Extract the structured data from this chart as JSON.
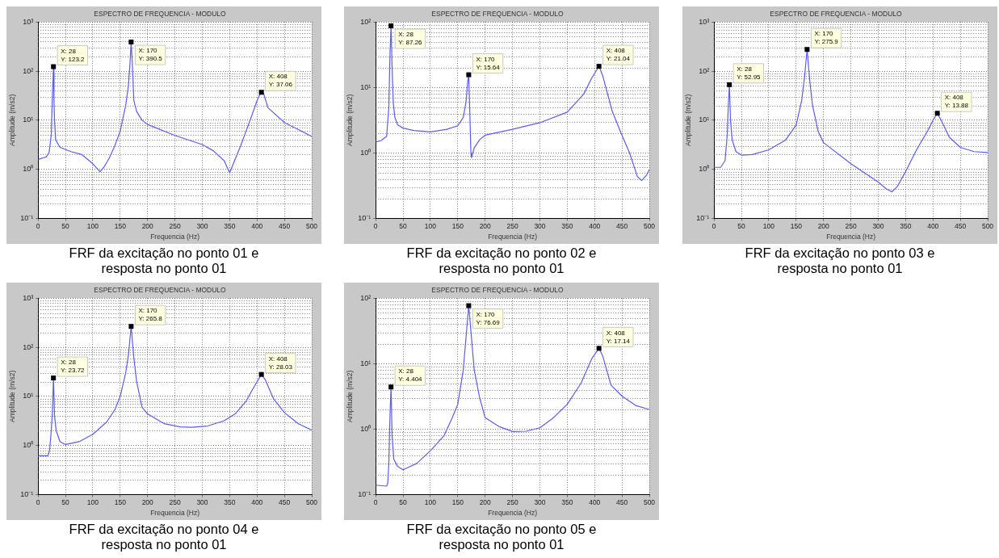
{
  "chart_data": [
    {
      "type": "line",
      "title": "ESPECTRO DE FREQUENCIA - MODULO",
      "xlabel": "Frequencia (Hz)",
      "ylabel": "Amplitude (m/s2)",
      "color": "#5a5aff",
      "log": "y",
      "grid": true,
      "legend": false,
      "marker": "none",
      "line_style": "solid",
      "xlim": [
        0,
        500
      ],
      "xticks": [
        0,
        50,
        100,
        150,
        200,
        250,
        300,
        350,
        400,
        450,
        500
      ],
      "ylim": [
        0.1,
        1000
      ],
      "yticks": [
        {
          "value": 0.1,
          "label": "10⁻¹"
        },
        {
          "value": 1,
          "label": "10⁰"
        },
        {
          "value": 10,
          "label": "10¹"
        },
        {
          "value": 100,
          "label": "10²"
        },
        {
          "value": 1000,
          "label": "10³"
        }
      ],
      "x": [
        0,
        15,
        20,
        24,
        26,
        28,
        29,
        30,
        32,
        40,
        60,
        80,
        100,
        113,
        120,
        130,
        140,
        150,
        160,
        165,
        168,
        170,
        172,
        175,
        180,
        190,
        200,
        250,
        300,
        320,
        340,
        350,
        360,
        370,
        380,
        390,
        400,
        405,
        408,
        412,
        420,
        450,
        475,
        500
      ],
      "values": [
        1.6,
        1.8,
        2.2,
        5,
        30,
        123.2,
        25,
        10,
        4,
        2.8,
        2.3,
        2,
        1.3,
        0.9,
        1.1,
        1.7,
        3,
        6,
        20,
        50,
        150,
        390.5,
        150,
        25,
        15,
        10,
        8.2,
        4.9,
        3.2,
        2.4,
        1.5,
        0.85,
        1.6,
        3,
        6,
        12,
        25,
        33,
        37.06,
        35,
        18,
        9,
        6.5,
        4.7
      ],
      "annotations": [
        {
          "text": "X: 28\nY: 123.2",
          "x": 28,
          "y": 123.2
        },
        {
          "text": "X: 170\nY: 390.5",
          "x": 170,
          "y": 390.5
        },
        {
          "text": "X: 408\nY: 37.06",
          "x": 408,
          "y": 37.06
        },
        "FRF da excitação no ponto 01 e resposta no ponto 01"
      ]
    },
    {
      "type": "line",
      "title": "ESPECTRO DE FREQUENCIA - MODULO",
      "xlabel": "Frequencia (Hz)",
      "ylabel": "Amplitude (m/s2)",
      "color": "#5a5aff",
      "log": "y",
      "grid": true,
      "legend": false,
      "marker": "none",
      "line_style": "solid",
      "xlim": [
        0,
        500
      ],
      "xticks": [
        0,
        50,
        100,
        150,
        200,
        250,
        300,
        350,
        400,
        450,
        500
      ],
      "ylim": [
        0.1,
        100
      ],
      "yticks": [
        {
          "value": 0.1,
          "label": "10⁻¹"
        },
        {
          "value": 1,
          "label": "10⁰"
        },
        {
          "value": 10,
          "label": "10¹"
        },
        {
          "value": 100,
          "label": "10²"
        }
      ],
      "x": [
        0,
        10,
        20,
        24,
        26,
        28,
        30,
        32,
        35,
        40,
        50,
        70,
        100,
        130,
        150,
        160,
        165,
        168,
        170,
        172,
        174,
        175,
        180,
        190,
        200,
        250,
        300,
        350,
        380,
        395,
        408,
        415,
        432,
        448,
        464,
        478,
        486,
        495,
        500
      ],
      "values": [
        1.47,
        1.55,
        1.8,
        5,
        30,
        87.26,
        20,
        6,
        3.5,
        2.7,
        2.4,
        2.2,
        2.1,
        2.3,
        2.6,
        3.5,
        6,
        12,
        15.64,
        4,
        1,
        0.85,
        1.2,
        1.6,
        1.87,
        2.3,
        2.9,
        4.2,
        7.9,
        14,
        21.04,
        15,
        4.4,
        2.05,
        1,
        0.44,
        0.38,
        0.46,
        0.56
      ],
      "annotations": [
        {
          "text": "X: 28\nY: 87.26",
          "x": 28,
          "y": 87.26
        },
        {
          "text": "X: 170\nY: 15.64",
          "x": 170,
          "y": 15.64
        },
        {
          "text": "X: 408\nY: 21.04",
          "x": 408,
          "y": 21.04
        },
        "FRF da excitação no ponto 02 e resposta no ponto 01"
      ]
    },
    {
      "type": "line",
      "title": "ESPECTRO DE FREQUENCIA - MODULO",
      "xlabel": "Frequencia (Hz)",
      "ylabel": "Amplitude (m/s2)",
      "color": "#5a5aff",
      "log": "y",
      "grid": true,
      "legend": false,
      "marker": "none",
      "line_style": "solid",
      "xlim": [
        0,
        500
      ],
      "xticks": [
        0,
        50,
        100,
        150,
        200,
        250,
        300,
        350,
        400,
        450,
        500
      ],
      "ylim": [
        0.1,
        1000
      ],
      "yticks": [
        {
          "value": 0.1,
          "label": "10⁻¹"
        },
        {
          "value": 1,
          "label": "10⁰"
        },
        {
          "value": 10,
          "label": "10¹"
        },
        {
          "value": 100,
          "label": "10²"
        },
        {
          "value": 1000,
          "label": "10³"
        }
      ],
      "x": [
        0,
        12,
        20,
        24,
        26,
        28,
        30,
        33,
        40,
        50,
        70,
        100,
        130,
        150,
        160,
        165,
        170,
        175,
        180,
        190,
        200,
        250,
        300,
        315,
        325,
        335,
        350,
        370,
        390,
        400,
        408,
        415,
        430,
        450,
        475,
        500
      ],
      "values": [
        1.1,
        1.1,
        1.5,
        5,
        20,
        52.95,
        10,
        4,
        2.3,
        1.95,
        2,
        2.5,
        3.9,
        8,
        25,
        70,
        275.9,
        60,
        20,
        6,
        3.5,
        1.3,
        0.55,
        0.4,
        0.35,
        0.45,
        0.9,
        2.5,
        6,
        10,
        13.88,
        10,
        4.5,
        2.8,
        2.3,
        2.2
      ],
      "annotations": [
        {
          "text": "X: 28\nY: 52.95",
          "x": 28,
          "y": 52.95
        },
        {
          "text": "X: 170\nY: 275.9",
          "x": 170,
          "y": 275.9
        },
        {
          "text": "X: 408\nY: 13.88",
          "x": 408,
          "y": 13.88
        },
        "FRF da excitação no ponto 03 e resposta no ponto 01"
      ]
    },
    {
      "type": "line",
      "title": "ESPECTRO DE FREQUENCIA - MODULO",
      "xlabel": "Frequencia (Hz)",
      "ylabel": "Amplitude (m/s2)",
      "color": "#5a5aff",
      "log": "y",
      "grid": true,
      "legend": false,
      "marker": "none",
      "line_style": "solid",
      "xlim": [
        0,
        500
      ],
      "xticks": [
        0,
        50,
        100,
        150,
        200,
        250,
        300,
        350,
        400,
        450,
        500
      ],
      "ylim": [
        0.1,
        1000
      ],
      "yticks": [
        {
          "value": 0.1,
          "label": "10⁻¹"
        },
        {
          "value": 1,
          "label": "10⁰"
        },
        {
          "value": 10,
          "label": "10¹"
        },
        {
          "value": 100,
          "label": "10²"
        },
        {
          "value": 1000,
          "label": "10³"
        }
      ],
      "x": [
        0,
        18,
        21,
        24,
        26,
        27,
        28,
        30,
        33,
        40,
        50,
        75,
        100,
        125,
        140,
        150,
        160,
        165,
        170,
        175,
        180,
        190,
        200,
        230,
        260,
        280,
        310,
        340,
        360,
        380,
        395,
        408,
        415,
        430,
        450,
        475,
        500
      ],
      "values": [
        0.62,
        0.62,
        0.8,
        2,
        4.7,
        10,
        23.72,
        4,
        2,
        1.2,
        1.05,
        1.2,
        1.7,
        3,
        5.3,
        10,
        30,
        70,
        265.8,
        60,
        20,
        6,
        4.4,
        2.8,
        2.4,
        2.35,
        2.5,
        3.2,
        4.4,
        8,
        16,
        28.03,
        22,
        9,
        4.7,
        2.8,
        2.05
      ],
      "annotations": [
        {
          "text": "X: 28\nY: 23.72",
          "x": 28,
          "y": 23.72
        },
        {
          "text": "X: 170\nY: 265.8",
          "x": 170,
          "y": 265.8
        },
        {
          "text": "X: 408\nY: 28.03",
          "x": 408,
          "y": 28.03
        },
        "FRF da excitação no ponto 04 e resposta no ponto 01"
      ]
    },
    {
      "type": "line",
      "title": "ESPECTRO DE FREQUENCIA - MODULO",
      "xlabel": "Frequencia (Hz)",
      "ylabel": "Amplitude (m/s2)",
      "color": "#5a5aff",
      "log": "y",
      "grid": true,
      "legend": false,
      "marker": "none",
      "line_style": "solid",
      "xlim": [
        0,
        500
      ],
      "xticks": [
        0,
        50,
        100,
        150,
        200,
        250,
        300,
        350,
        400,
        450,
        500
      ],
      "ylim": [
        0.1,
        100
      ],
      "yticks": [
        {
          "value": 0.1,
          "label": "10⁻¹"
        },
        {
          "value": 1,
          "label": "10⁰"
        },
        {
          "value": 10,
          "label": "10¹"
        },
        {
          "value": 100,
          "label": "10²"
        }
      ],
      "x": [
        0,
        20,
        22,
        24,
        26,
        28,
        30,
        33,
        40,
        50,
        75,
        100,
        125,
        140,
        150,
        160,
        165,
        170,
        175,
        180,
        190,
        200,
        225,
        250,
        275,
        300,
        325,
        350,
        375,
        395,
        408,
        415,
        430,
        450,
        475,
        500
      ],
      "values": [
        0.14,
        0.135,
        0.15,
        0.3,
        1.5,
        4.404,
        0.8,
        0.35,
        0.27,
        0.24,
        0.3,
        0.47,
        0.8,
        1.5,
        2.4,
        8,
        25,
        76.69,
        25,
        8,
        3,
        1.5,
        1.1,
        0.92,
        0.93,
        1.05,
        1.5,
        2.4,
        5,
        12,
        17.14,
        13,
        4.7,
        3.2,
        2.3,
        2
      ],
      "annotations": [
        {
          "text": "X: 28\nY: 4.404",
          "x": 28,
          "y": 4.404
        },
        {
          "text": "X: 170\nY: 76.69",
          "x": 170,
          "y": 76.69
        },
        {
          "text": "X: 408\nY: 17.14",
          "x": 408,
          "y": 17.14
        },
        "FRF da excitação no ponto 05 e resposta no ponto 01"
      ]
    }
  ]
}
